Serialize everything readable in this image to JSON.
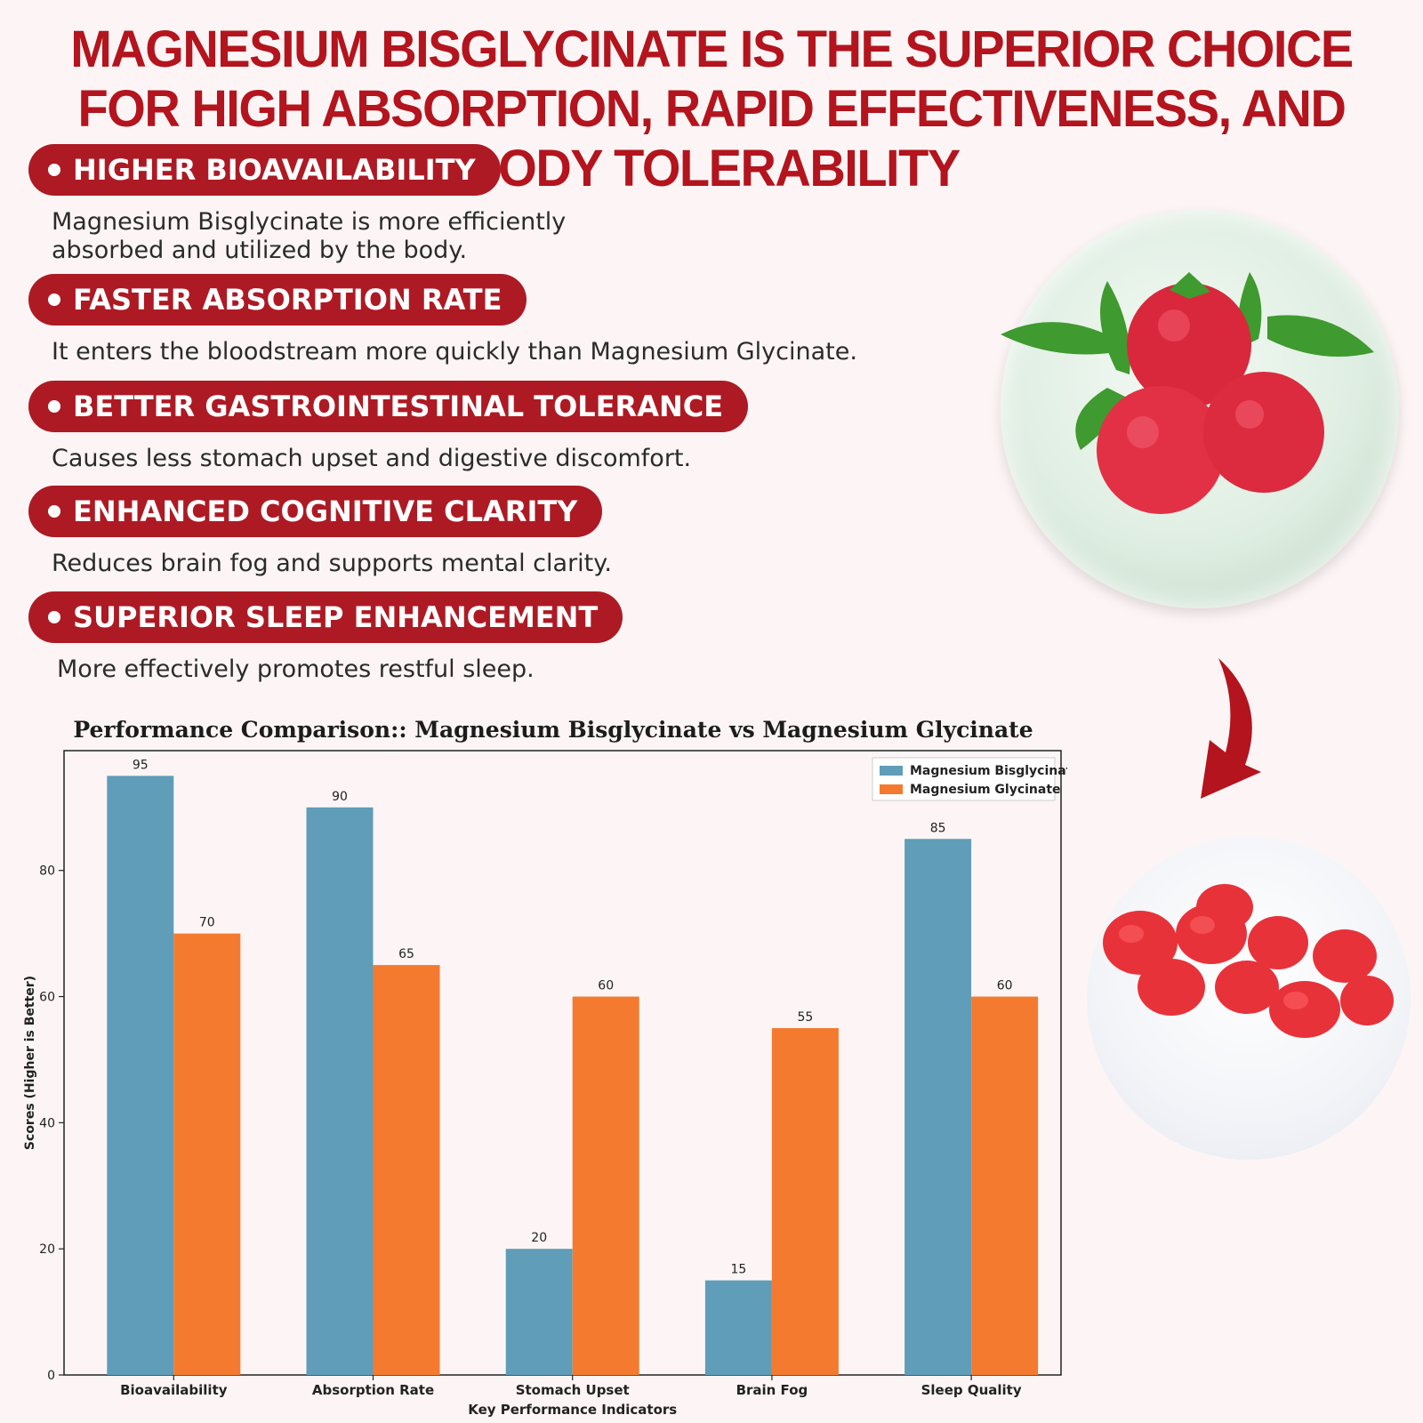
{
  "headline": "MAGNESIUM BISGLYCINATE IS THE SUPERIOR CHOICE FOR HIGH ABSORPTION, RAPID EFFECTIVENESS, AND BODY TOLERABILITY",
  "benefits": [
    {
      "title": "HIGHER BIOAVAILABILITY",
      "desc_lines": [
        "Magnesium Bisglycinate is more efficiently",
        "absorbed and utilized by the body."
      ]
    },
    {
      "title": "FASTER ABSORPTION RATE",
      "desc_lines": [
        "It enters the bloodstream more quickly than Magnesium Glycinate."
      ]
    },
    {
      "title": "BETTER GASTROINTESTINAL TOLERANCE",
      "desc_lines": [
        "Causes less stomach upset and digestive discomfort."
      ]
    },
    {
      "title": "ENHANCED COGNITIVE CLARITY",
      "desc_lines": [
        "Reduces brain fog and supports mental clarity."
      ]
    },
    {
      "title": "SUPERIOR SLEEP ENHANCEMENT",
      "desc_lines": [
        "More effectively promotes restful sleep."
      ]
    }
  ],
  "colors": {
    "accent": "#ad1a24",
    "series_bisglycinate": "#5f9db8",
    "series_glycinate": "#f47a30"
  },
  "icons": {
    "raspberry_bubble": "raspberry-bubble-icon",
    "arrow": "curved-arrow-icon",
    "gummies": "gummies-icon"
  },
  "chart_data": {
    "type": "bar",
    "title": "Performance Comparison:: Magnesium Bisglycinate vs Magnesium Glycinate",
    "xlabel": "Key Performance Indicators",
    "ylabel": "Scores (Higher is Better)",
    "categories": [
      "Bioavailability",
      "Absorption Rate",
      "Stomach Upset",
      "Brain Fog",
      "Sleep Quality"
    ],
    "series": [
      {
        "name": "Magnesium Bisglycinate",
        "values": [
          95,
          90,
          20,
          15,
          85
        ]
      },
      {
        "name": "Magnesium Glycinate",
        "values": [
          70,
          65,
          60,
          55,
          60
        ]
      }
    ],
    "ylim": [
      0,
      100
    ],
    "yticks": [
      0,
      20,
      40,
      60,
      80
    ],
    "grid": false,
    "legend": "top-right"
  }
}
